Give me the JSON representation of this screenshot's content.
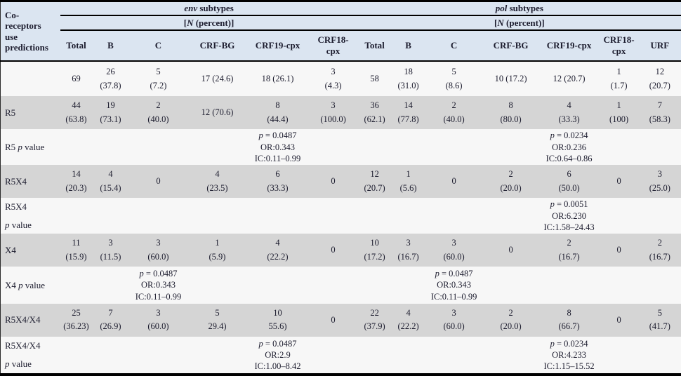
{
  "table": {
    "corner_label": "Co-\nreceptors\nuse\npredictions",
    "groups": [
      {
        "name_italic": "env",
        "name_rest": " subtypes",
        "sub_pre": "[",
        "sub_italic": "N",
        "sub_rest": " (percent)]",
        "cols": [
          "Total",
          "B",
          "C",
          "CRF-BG",
          "CRF19-cpx",
          "CRF18-\ncpx"
        ]
      },
      {
        "name_italic": "pol",
        "name_rest": " subtypes",
        "sub_pre": "[",
        "sub_italic": "N",
        "sub_rest": " (percent)]",
        "cols": [
          "Total",
          "B",
          "C",
          "CRF-BG",
          "CRF19-cpx",
          "CRF18-\ncpx",
          "URF"
        ]
      }
    ],
    "rows": [
      {
        "label": "",
        "pv": "",
        "pv_break": false,
        "shaded": false,
        "cells": [
          "69",
          "26\n(37.8)",
          "5\n(7.2)",
          "17 (24.6)",
          "18 (26.1)",
          "3\n(4.3)",
          "58",
          "18\n(31.0)",
          "5\n(8.6)",
          "10 (17.2)",
          "12 (20.7)",
          "1\n(1.7)",
          "12\n(20.7)"
        ]
      },
      {
        "label": "R5",
        "pv": "",
        "pv_break": false,
        "shaded": true,
        "cells": [
          "44\n(63.8)",
          "19\n(73.1)",
          "2\n(40.0)",
          "12 (70.6)",
          "8\n(44.4)",
          "3\n(100.0)",
          "36\n(62.1)",
          "14\n(77.8)",
          "2\n(40.0)",
          "8\n(80.0)",
          "4\n(33.3)",
          "1\n(100)",
          "7\n(58.3)"
        ]
      },
      {
        "label": "R5",
        "pv": "p value",
        "pv_break": false,
        "shaded": false,
        "cells": [
          "",
          "",
          "",
          "",
          "p = 0.0487\nOR:0.343\nIC:0.11–0.99",
          "",
          "",
          "",
          "",
          "",
          "p = 0.0234\nOR:0.236\nIC:0.64–0.86",
          "",
          ""
        ]
      },
      {
        "label": "R5X4",
        "pv": "",
        "pv_break": false,
        "shaded": true,
        "cells": [
          "14\n(20.3)",
          "4\n(15.4)",
          "0",
          "4\n(23.5)",
          "6\n(33.3)",
          "0",
          "12\n(20.7)",
          "1\n(5.6)",
          "0",
          "2\n(20.0)",
          "6\n(50.0)",
          "0",
          "3\n(25.0)"
        ]
      },
      {
        "label": "R5X4",
        "pv": "p value",
        "pv_break": true,
        "shaded": false,
        "cells": [
          "",
          "",
          "",
          "",
          "",
          "",
          "",
          "",
          "",
          "",
          "p = 0.0051\nOR:6.230\nIC:1.58–24.43",
          "",
          ""
        ]
      },
      {
        "label": "X4",
        "pv": "",
        "pv_break": false,
        "shaded": true,
        "cells": [
          "11\n(15.9)",
          "3\n(11.5)",
          "3\n(60.0)",
          "1\n(5.9)",
          "4\n(22.2)",
          "0",
          "10\n(17.2)",
          "3\n(16.7)",
          "3\n(60.0)",
          "0",
          "2\n(16.7)",
          "0",
          "2\n(16.7)"
        ]
      },
      {
        "label": "X4",
        "pv": "p value",
        "pv_break": false,
        "shaded": false,
        "cells": [
          "",
          "",
          "p = 0.0487\nOR:0.343\nIC:0.11–0.99",
          "",
          "",
          "",
          "",
          "",
          "p = 0.0487\nOR:0.343\nIC:0.11–0.99",
          "",
          "",
          "",
          ""
        ]
      },
      {
        "label": "R5X4/X4",
        "pv": "",
        "pv_break": false,
        "shaded": true,
        "cells": [
          "25\n(36.23)",
          "7\n(26.9)",
          "3\n(60.0)",
          "5\n29.4)",
          "10\n55.6)",
          "0",
          "22\n(37.9)",
          "4\n(22.2)",
          "3\n(60.0)",
          "2\n(20.0)",
          "8\n(66.7)",
          "0",
          "5\n(41.7)"
        ]
      },
      {
        "label": "R5X4/X4",
        "pv": "p value",
        "pv_break": true,
        "shaded": false,
        "cells": [
          "",
          "",
          "",
          "",
          "p = 0.0487\nOR:2.9\nIC:1.00–8.42",
          "",
          "",
          "",
          "",
          "",
          "p = 0.0234\nOR:4.233\nIC:1.15–15.52",
          "",
          ""
        ]
      }
    ],
    "colors": {
      "header_bg": "#dbe5f1",
      "shaded_row_bg": "#d5d5d5",
      "plain_row_bg": "#f7f7f7",
      "text": "#1c1c2e",
      "rule": "#000000"
    }
  }
}
